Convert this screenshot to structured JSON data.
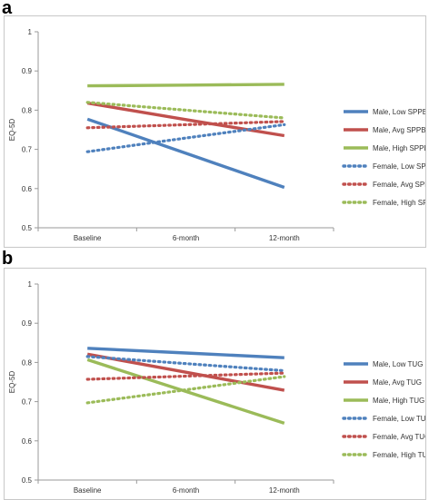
{
  "chart_data": [
    {
      "panel_label": "a",
      "type": "line",
      "categories": [
        "Baseline",
        "6-month",
        "12-month"
      ],
      "ylabel": "EQ-5D",
      "ylim": [
        0.5,
        1
      ],
      "yticks": [
        "0.5",
        "0.6",
        "0.7",
        "0.8",
        "0.9",
        "1"
      ],
      "grid": false,
      "legend_position": "right",
      "series": [
        {
          "name": "Male, Low SPPB",
          "color": "#4f81bd",
          "style": "solid",
          "values": [
            0.777,
            0.69,
            0.603
          ]
        },
        {
          "name": "Male, Avg SPPB",
          "color": "#c0504d",
          "style": "solid",
          "values": [
            0.818,
            0.776,
            0.735
          ]
        },
        {
          "name": "Male, High SPPB",
          "color": "#9bbb59",
          "style": "solid",
          "values": [
            0.862,
            0.864,
            0.866
          ]
        },
        {
          "name": "Female, Low SPPB",
          "color": "#4f81bd",
          "style": "dotted",
          "values": [
            0.694,
            0.729,
            0.763
          ]
        },
        {
          "name": "Female, Avg SPPB",
          "color": "#c0504d",
          "style": "dotted",
          "values": [
            0.755,
            0.763,
            0.771
          ]
        },
        {
          "name": "Female, High SPPB",
          "color": "#9bbb59",
          "style": "dotted",
          "values": [
            0.82,
            0.8,
            0.78
          ]
        }
      ]
    },
    {
      "panel_label": "b",
      "type": "line",
      "categories": [
        "Baseline",
        "6-month",
        "12-month"
      ],
      "ylabel": "EQ-5D",
      "ylim": [
        0.5,
        1
      ],
      "yticks": [
        "0.5",
        "0.6",
        "0.7",
        "0.8",
        "0.9",
        "1"
      ],
      "grid": false,
      "legend_position": "right",
      "series": [
        {
          "name": "Male, Low TUG",
          "color": "#4f81bd",
          "style": "solid",
          "values": [
            0.836,
            0.824,
            0.812
          ]
        },
        {
          "name": "Male, Avg TUG",
          "color": "#c0504d",
          "style": "solid",
          "values": [
            0.821,
            0.775,
            0.729
          ]
        },
        {
          "name": "Male, High TUG",
          "color": "#9bbb59",
          "style": "solid",
          "values": [
            0.807,
            0.726,
            0.645
          ]
        },
        {
          "name": "Female, Low TUG",
          "color": "#4f81bd",
          "style": "dotted",
          "values": [
            0.815,
            0.797,
            0.779
          ]
        },
        {
          "name": "Female, Avg TUG",
          "color": "#c0504d",
          "style": "dotted",
          "values": [
            0.757,
            0.765,
            0.773
          ]
        },
        {
          "name": "Female, High TUG",
          "color": "#9bbb59",
          "style": "dotted",
          "values": [
            0.697,
            0.73,
            0.764
          ]
        }
      ]
    }
  ]
}
